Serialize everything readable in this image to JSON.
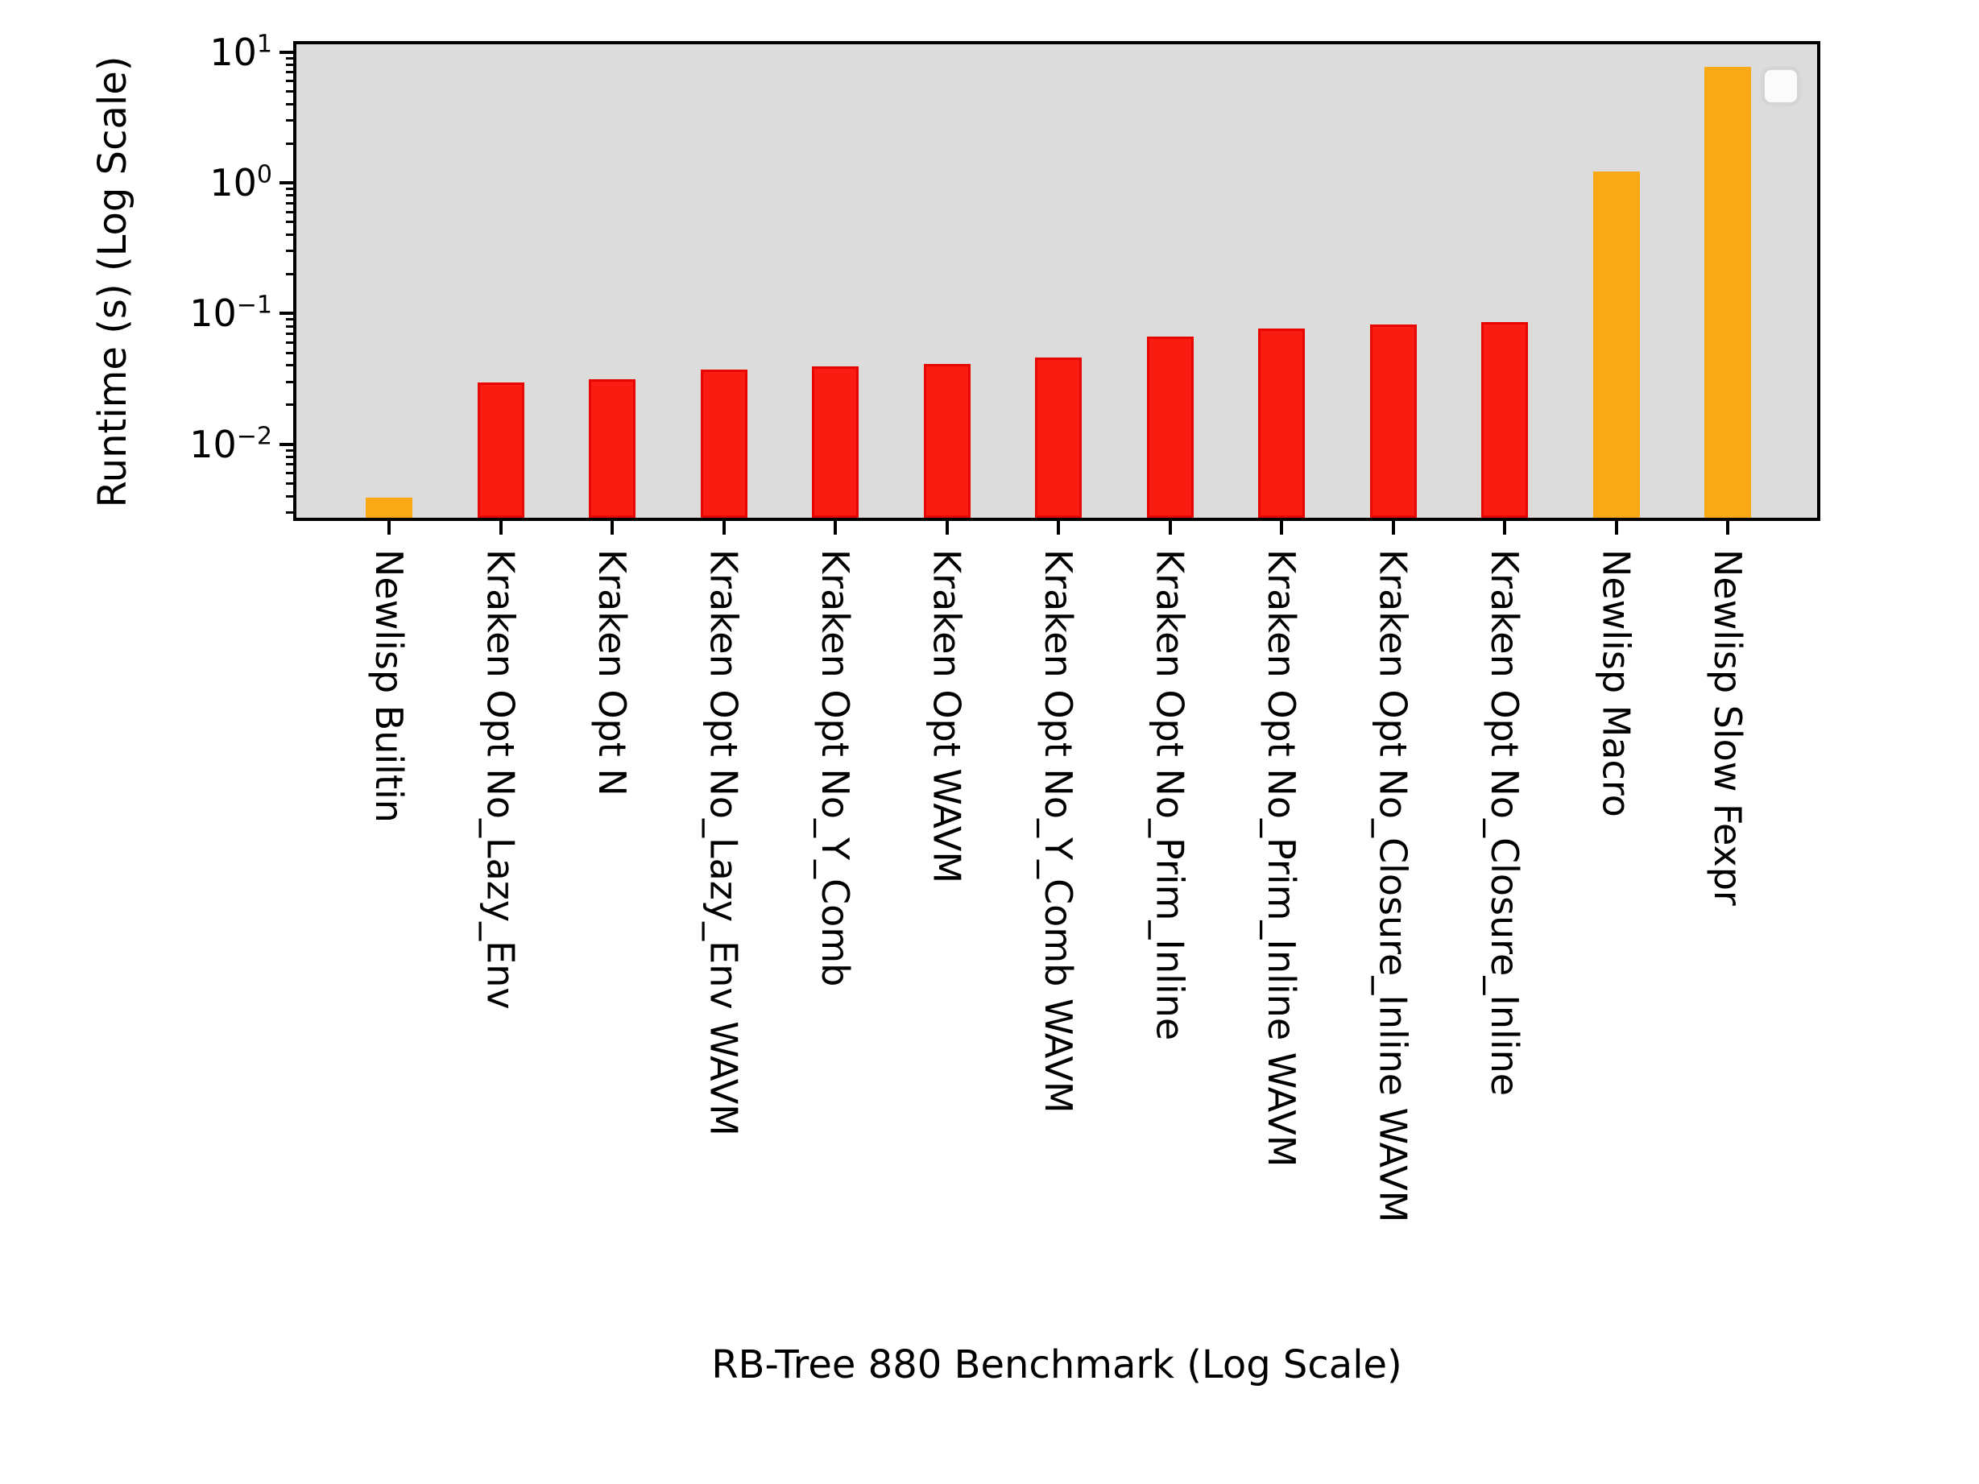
{
  "figure": {
    "xlabel": "RB-Tree 880 Benchmark (Log Scale)",
    "ylabel": "Runtime (s) (Log Scale)"
  },
  "colors": {
    "background": "#ffffff",
    "plot_background": "#dcdcdc",
    "axis": "#000000",
    "kraken_fill": "#f91c10",
    "kraken_edge": "#e90500",
    "newlisp_fill": "#f9a915",
    "legend_border": "#d5d5d5",
    "legend_fill": "#fbfbfb"
  },
  "chart_data": {
    "type": "bar",
    "title": "",
    "xlabel": "RB-Tree 880 Benchmark (Log Scale)",
    "ylabel": "Runtime (s) (Log Scale)",
    "yscale": "log",
    "ylim": [
      0.0027,
      11.5
    ],
    "ytick_exponents": [
      1,
      0,
      -1,
      -2
    ],
    "grid": false,
    "legend": {
      "visible": true,
      "entries": [],
      "position": "upper right"
    },
    "categories": [
      "Newlisp Builtin",
      "Kraken Opt No_Lazy_Env",
      "Kraken Opt N",
      "Kraken Opt No_Lazy_Env WAVM",
      "Kraken Opt No_Y_Comb",
      "Kraken Opt WAVM",
      "Kraken Opt No_Y_Comb WAVM",
      "Kraken Opt No_Prim_Inline",
      "Kraken Opt No_Prim_Inline WAVM",
      "Kraken Opt No_Closure_Inline WAVM",
      "Kraken Opt No_Closure_Inline",
      "Newlisp Macro",
      "Newlisp Slow Fexpr"
    ],
    "values": [
      0.0039,
      0.0295,
      0.0312,
      0.0372,
      0.0394,
      0.0413,
      0.0462,
      0.0662,
      0.0765,
      0.0825,
      0.0858,
      1.22,
      7.7
    ],
    "bar_fill_colors": [
      "#f9a915",
      "#f91c10",
      "#f91c10",
      "#f91c10",
      "#f91c10",
      "#f91c10",
      "#f91c10",
      "#f91c10",
      "#f91c10",
      "#f91c10",
      "#f91c10",
      "#f9a915",
      "#f9a915"
    ],
    "bar_edge_colors": [
      "#f9a915",
      "#e90500",
      "#e90500",
      "#e90500",
      "#e90500",
      "#e90500",
      "#e90500",
      "#e90500",
      "#e90500",
      "#e90500",
      "#e90500",
      "#f9a915",
      "#f9a915"
    ]
  }
}
